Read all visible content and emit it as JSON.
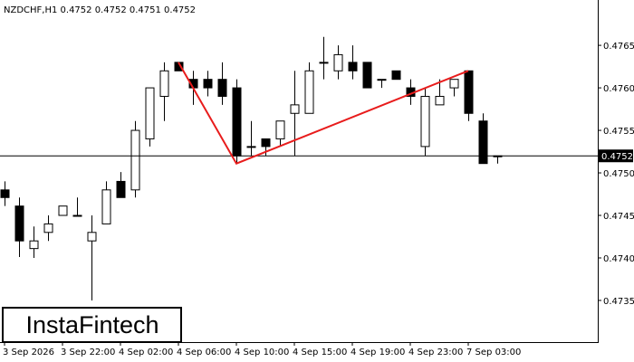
{
  "chart_data": {
    "type": "candlestick",
    "title": "NZDCHF,H1  0.4752 0.4752 0.4751 0.4752",
    "categories": [
      "3 Sep 2026",
      null,
      null,
      null,
      "3 Sep 22:00",
      null,
      null,
      null,
      "4 Sep 02:00",
      null,
      null,
      null,
      "4 Sep 06:00",
      null,
      null,
      null,
      "4 Sep 10:00",
      null,
      null,
      null,
      "4 Sep 15:00",
      null,
      null,
      null,
      "4 Sep 19:00",
      null,
      null,
      null,
      "4 Sep 23:00",
      null,
      null,
      null,
      "7 Sep 03:00",
      null,
      null
    ],
    "open": [
      0.4748,
      0.47461,
      0.47411,
      0.4743,
      0.4745,
      0.4745,
      0.4742,
      0.4744,
      0.4749,
      0.4748,
      0.4754,
      0.4759,
      0.4763,
      0.4761,
      0.4761,
      0.4761,
      0.476,
      0.47531,
      0.4754,
      0.4754,
      0.4757,
      0.4757,
      0.4763,
      0.4762,
      0.4763,
      0.4763,
      0.4761,
      0.4762,
      0.476,
      0.47531,
      0.4758,
      0.476,
      0.4762,
      0.47561,
      0.4752
    ],
    "high": [
      0.4749,
      0.47471,
      0.47437,
      0.4745,
      0.47461,
      0.47471,
      0.4745,
      0.4749,
      0.47501,
      0.47561,
      0.476,
      0.4763,
      0.4763,
      0.4762,
      0.4762,
      0.4763,
      0.4761,
      0.47561,
      0.4754,
      0.47561,
      0.4762,
      0.4763,
      0.4766,
      0.4765,
      0.4765,
      0.4763,
      0.4761,
      0.4762,
      0.4761,
      0.476,
      0.4761,
      0.4761,
      0.4762,
      0.4757,
      0.4752
    ],
    "low": [
      0.47461,
      0.47401,
      0.474,
      0.4742,
      0.4745,
      0.4745,
      0.4735,
      0.4744,
      0.47471,
      0.47471,
      0.47531,
      0.47561,
      0.4762,
      0.4758,
      0.4759,
      0.4758,
      0.47511,
      0.4752,
      0.4752,
      0.47531,
      0.4752,
      0.4757,
      0.4761,
      0.4761,
      0.4761,
      0.476,
      0.476,
      0.4761,
      0.4758,
      0.4752,
      0.4758,
      0.4759,
      0.47561,
      0.47511,
      0.47511
    ],
    "close": [
      0.47471,
      0.4742,
      0.4742,
      0.4744,
      0.47461,
      0.4745,
      0.4743,
      0.4748,
      0.47471,
      0.4755,
      0.476,
      0.4762,
      0.4762,
      0.476,
      0.476,
      0.4759,
      0.4752,
      0.47531,
      0.47531,
      0.47561,
      0.4758,
      0.4762,
      0.4763,
      0.47639,
      0.4762,
      0.476,
      0.4761,
      0.4761,
      0.4759,
      0.4759,
      0.4759,
      0.4761,
      0.4757,
      0.47511,
      0.4752
    ],
    "pattern": {
      "color": "#e81c1c",
      "indices": [
        12,
        16,
        32
      ],
      "values": [
        0.4763,
        0.47511,
        0.4762
      ]
    },
    "current_price": 0.4752,
    "ylim": [
      0.47301,
      0.47698
    ],
    "yticks": [
      0.4735,
      {
        "value": 0.474,
        "label": "0.4740"
      },
      0.4745,
      {
        "value": 0.475,
        "label": "0.4750"
      },
      0.4755,
      {
        "value": 0.476,
        "label": "0.4760"
      },
      0.4765
    ],
    "watermark": "InstaFintech"
  }
}
